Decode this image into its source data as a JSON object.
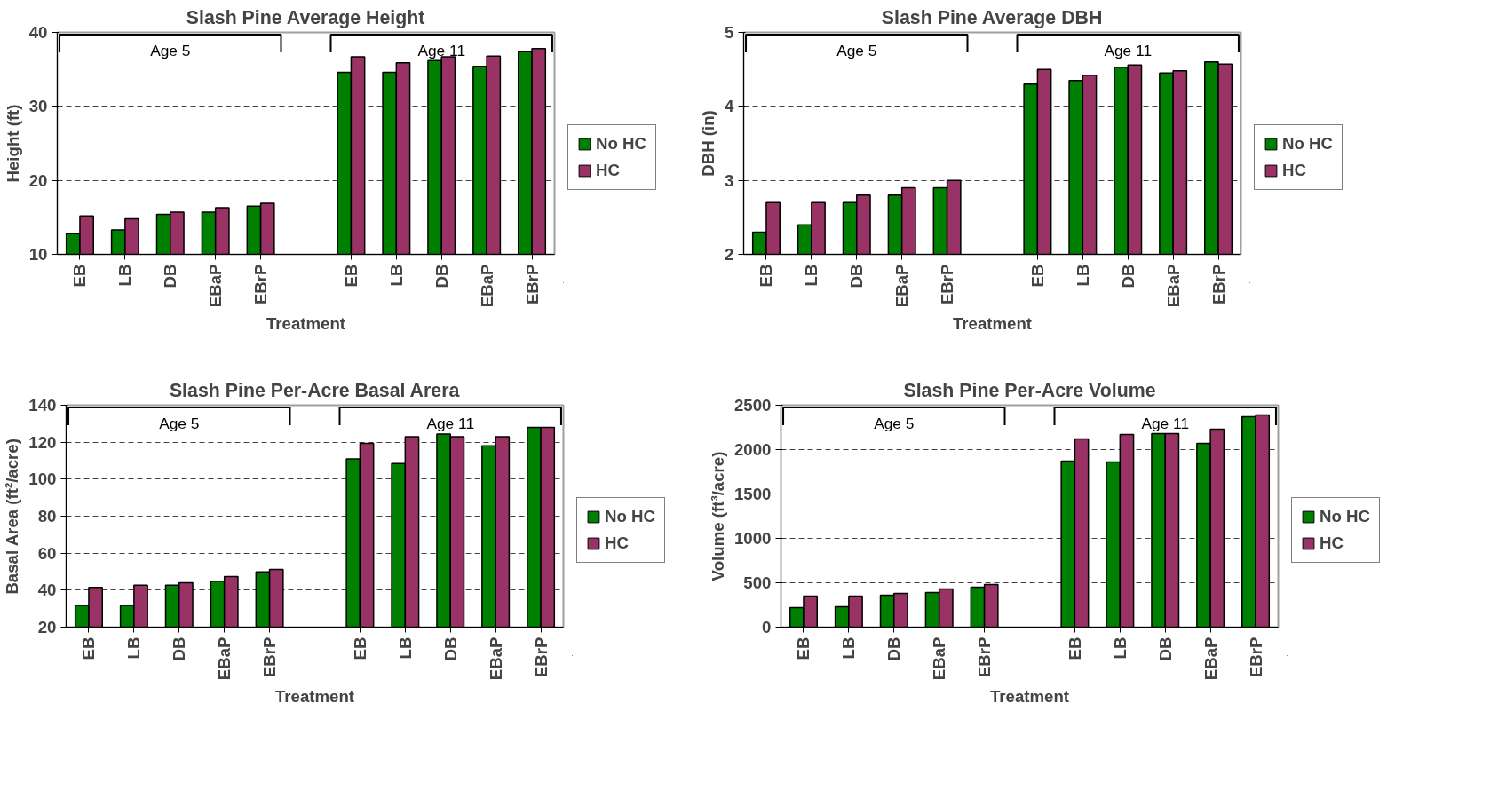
{
  "chart_data": [
    {
      "type": "bar",
      "title": "Slash Pine Average Height",
      "xlabel": "Treatment",
      "ylabel": "Height (ft)",
      "categories": [
        "EB",
        "LB",
        "DB",
        "EBaP",
        "EBrP",
        null,
        "EB",
        "LB",
        "DB",
        "EBaP",
        "EBrP"
      ],
      "series": [
        {
          "name": "No HC",
          "color": "#008000",
          "values": [
            12.8,
            13.3,
            15.4,
            15.7,
            16.5,
            null,
            34.6,
            34.6,
            36.2,
            35.4,
            37.4
          ]
        },
        {
          "name": "HC",
          "color": "#993366",
          "values": [
            15.2,
            14.8,
            15.7,
            16.3,
            16.9,
            null,
            36.7,
            35.9,
            36.7,
            36.8,
            37.8
          ]
        }
      ],
      "ylim": [
        10,
        40
      ],
      "yticks": [
        10,
        20,
        30,
        40
      ],
      "grid": "y",
      "legend": "right",
      "annotations": [
        "Age 5",
        "Age 11"
      ]
    },
    {
      "type": "bar",
      "title": "Slash Pine Average DBH",
      "xlabel": "Treatment",
      "ylabel": "DBH (in)",
      "categories": [
        "EB",
        "LB",
        "DB",
        "EBaP",
        "EBrP",
        null,
        "EB",
        "LB",
        "DB",
        "EBaP",
        "EBrP"
      ],
      "series": [
        {
          "name": "No HC",
          "color": "#008000",
          "values": [
            2.3,
            2.4,
            2.7,
            2.8,
            2.9,
            null,
            4.3,
            4.35,
            4.53,
            4.45,
            4.6
          ]
        },
        {
          "name": "HC",
          "color": "#993366",
          "values": [
            2.7,
            2.7,
            2.8,
            2.9,
            3.0,
            null,
            4.5,
            4.42,
            4.56,
            4.48,
            4.57
          ]
        }
      ],
      "ylim": [
        2,
        5
      ],
      "yticks": [
        2,
        3,
        4,
        5
      ],
      "grid": "y",
      "legend": "right",
      "annotations": [
        "Age 5",
        "Age 11"
      ]
    },
    {
      "type": "bar",
      "title": "Slash Pine Per-Acre Basal Arera",
      "xlabel": "Treatment",
      "ylabel": "Basal Area (ft²/acre)",
      "categories": [
        "EB",
        "LB",
        "DB",
        "EBaP",
        "EBrP",
        null,
        "EB",
        "LB",
        "DB",
        "EBaP",
        "EBrP"
      ],
      "series": [
        {
          "name": "No HC",
          "color": "#008000",
          "values": [
            31.8,
            31.8,
            42.7,
            44.9,
            49.9,
            null,
            111,
            108.5,
            124.4,
            118,
            128
          ]
        },
        {
          "name": "HC",
          "color": "#993366",
          "values": [
            41.5,
            42.7,
            44,
            47.4,
            51.2,
            null,
            119.4,
            123,
            123,
            123,
            128
          ]
        }
      ],
      "ylim": [
        20,
        140
      ],
      "yticks": [
        20,
        40,
        60,
        80,
        100,
        120,
        140
      ],
      "grid": "y",
      "legend": "right",
      "annotations": [
        "Age 5",
        "Age 11"
      ]
    },
    {
      "type": "bar",
      "title": "Slash Pine Per-Acre Volume",
      "xlabel": "Treatment",
      "ylabel": "Volume (ft³/acre)",
      "categories": [
        "EB",
        "LB",
        "DB",
        "EBaP",
        "EBrP",
        null,
        "EB",
        "LB",
        "DB",
        "EBaP",
        "EBrP"
      ],
      "series": [
        {
          "name": "No HC",
          "color": "#008000",
          "values": [
            220,
            230,
            360,
            390,
            450,
            null,
            1870,
            1860,
            2180,
            2070,
            2370
          ]
        },
        {
          "name": "HC",
          "color": "#993366",
          "values": [
            350,
            350,
            380,
            430,
            480,
            null,
            2120,
            2170,
            2180,
            2230,
            2390
          ]
        }
      ],
      "ylim": [
        0,
        2500
      ],
      "yticks": [
        0,
        500,
        1000,
        1500,
        2000,
        2500
      ],
      "grid": "y",
      "legend": "right",
      "annotations": [
        "Age 5",
        "Age 11"
      ]
    }
  ]
}
